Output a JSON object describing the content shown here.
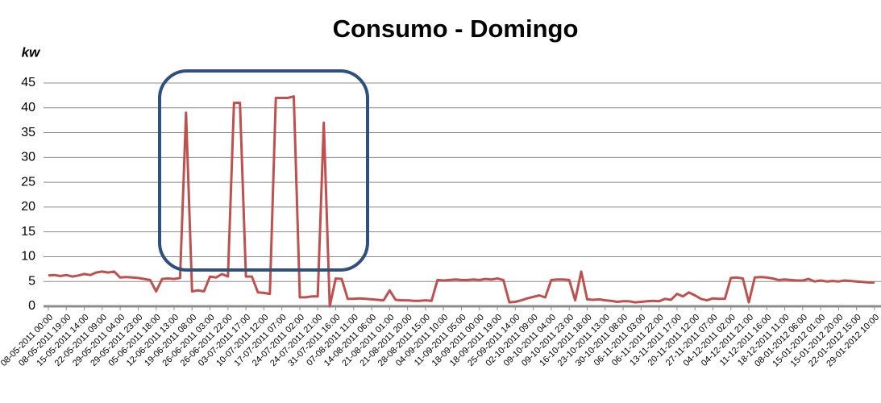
{
  "chart_data": {
    "type": "line",
    "title": "Consumo - Domingo",
    "y_label": "kw",
    "categories": [
      "08-05-2011 00:00",
      null,
      null,
      "08-05-2011 19:00",
      null,
      null,
      "15-05-2011 14:00",
      null,
      null,
      "22-05-2011 09:00",
      null,
      null,
      "29-05-2011 04:00",
      null,
      null,
      "29-05-2011 23:00",
      null,
      null,
      "05-06-2011 18:00",
      null,
      null,
      "12-06-2011 13:00",
      null,
      null,
      "19-06-2011 08:00",
      null,
      null,
      "26-06-2011 03:00",
      null,
      null,
      "26-06-2011 22:00",
      null,
      null,
      "03-07-2011 17:00",
      null,
      null,
      "10-07-2011 12:00",
      null,
      null,
      "17-07-2011 07:00",
      null,
      null,
      "24-07-2011 02:00",
      null,
      null,
      "24-07-2011 21:00",
      null,
      null,
      "31-07-2011 16:00",
      null,
      null,
      "07-08-2011 11:00",
      null,
      null,
      "14-08-2011 06:00",
      null,
      null,
      "21-08-2011 01:00",
      null,
      null,
      "21-08-2011 20:00",
      null,
      null,
      "28-08-2011 15:00",
      null,
      null,
      "04-09-2011 10:00",
      null,
      null,
      "11-09-2011 05:00",
      null,
      null,
      "18-09-2011 00:00",
      null,
      null,
      "18-09-2011 19:00",
      null,
      null,
      "25-09-2011 14:00",
      null,
      null,
      "02-10-2011 09:00",
      null,
      null,
      "09-10-2011 04:00",
      null,
      null,
      "09-10-2011 23:00",
      null,
      null,
      "16-10-2011 18:00",
      null,
      null,
      "23-10-2011 13:00",
      null,
      null,
      "30-10-2011 08:00",
      null,
      null,
      "06-11-2011 03:00",
      null,
      null,
      "06-11-2011 22:00",
      null,
      null,
      "13-11-2011 17:00",
      null,
      null,
      "20-11-2011 12:00",
      null,
      null,
      "27-11-2011 07:00",
      null,
      null,
      "04-12-2011 02:00",
      null,
      null,
      "04-12-2011 21:00",
      null,
      null,
      "11-12-2011 16:00",
      null,
      null,
      "18-12-2011 11:00",
      null,
      null,
      "08-01-2012 06:00",
      null,
      null,
      "15-01-2012 01:00",
      null,
      null,
      "15-01-2012 20:00",
      null,
      null,
      "22-01-2012 15:00",
      null,
      null,
      "29-01-2012 10:00"
    ],
    "values": [
      6.2,
      6.3,
      6.1,
      6.3,
      6.0,
      6.2,
      6.5,
      6.3,
      6.8,
      7.0,
      6.8,
      7.0,
      5.8,
      5.9,
      5.8,
      5.7,
      5.5,
      5.3,
      3.0,
      5.5,
      5.6,
      5.5,
      5.7,
      39,
      3.0,
      3.2,
      3.0,
      6.0,
      5.8,
      6.5,
      6.0,
      41,
      41,
      6.0,
      6.0,
      2.8,
      2.7,
      2.5,
      42,
      42,
      42,
      42.3,
      1.8,
      1.8,
      2.0,
      2.0,
      37,
      0,
      5.6,
      5.5,
      1.5,
      1.5,
      1.6,
      1.5,
      1.4,
      1.3,
      1.2,
      3.2,
      1.3,
      1.2,
      1.2,
      1.1,
      1.1,
      1.2,
      1.1,
      5.3,
      5.2,
      5.3,
      5.4,
      5.3,
      5.3,
      5.4,
      5.3,
      5.5,
      5.4,
      5.6,
      5.3,
      0.8,
      0.9,
      1.2,
      1.6,
      1.9,
      2.2,
      1.8,
      5.3,
      5.4,
      5.4,
      5.3,
      1.2,
      7.0,
      1.4,
      1.3,
      1.4,
      1.2,
      1.1,
      0.9,
      1.0,
      1.0,
      0.8,
      0.9,
      1.0,
      1.1,
      1.0,
      1.5,
      1.3,
      2.5,
      2.0,
      2.8,
      2.2,
      1.5,
      1.2,
      1.6,
      1.5,
      1.5,
      5.7,
      5.8,
      5.6,
      0.8,
      5.8,
      5.9,
      5.8,
      5.6,
      5.3,
      5.4,
      5.3,
      5.2,
      5.2,
      5.5,
      5.0,
      5.2,
      5.0,
      5.1,
      5.0,
      5.2,
      5.1,
      5.0,
      4.9,
      4.8,
      4.8
    ],
    "color": "#c0504d",
    "ylim": [
      0,
      45
    ],
    "yticks": [
      0,
      5,
      10,
      15,
      20,
      25,
      30,
      35,
      40,
      45
    ],
    "grid": true
  }
}
